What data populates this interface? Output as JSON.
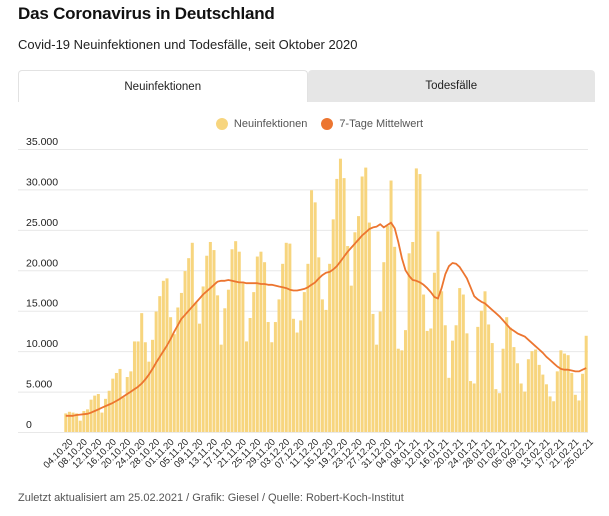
{
  "header": {
    "title": "Das Coronavirus in Deutschland",
    "subtitle": "Covid-19 Neuinfektionen und Todesfälle, seit Oktober 2020"
  },
  "tabs": [
    {
      "label": "Neuinfektionen",
      "active": true
    },
    {
      "label": "Todesfälle",
      "active": false
    }
  ],
  "legend": [
    {
      "label": "Neuinfektionen",
      "color": "#f7d57e"
    },
    {
      "label": "7-Tage Mittelwert",
      "color": "#ec7530"
    }
  ],
  "footer": "Zuletzt aktualisiert am 25.02.2021 / Grafik: Giesel / Quelle: Robert-Koch-Institut",
  "chart_data": {
    "type": "bar",
    "title": "Das Coronavirus in Deutschland",
    "subtitle": "Covid-19 Neuinfektionen und Todesfälle, seit Oktober 2020",
    "xlabel": "",
    "ylabel": "",
    "ylim": [
      0,
      35000
    ],
    "yticks": [
      0,
      5000,
      10000,
      15000,
      20000,
      25000,
      30000,
      35000
    ],
    "ytick_labels": [
      "0",
      "5.000",
      "10.000",
      "15.000",
      "20.000",
      "25.000",
      "30.000",
      "35.000"
    ],
    "grid": true,
    "legend_position": "top-center",
    "start_date": "04.10.20",
    "end_date": "25.02.21",
    "xtick_labels": [
      "04.10.20",
      "08.10.20",
      "12.10.20",
      "16.10.20",
      "20.10.20",
      "24.10.20",
      "28.10.20",
      "01.11.20",
      "05.11.20",
      "09.11.20",
      "13.11.20",
      "17.11.20",
      "21.11.20",
      "25.11.20",
      "29.11.20",
      "03.12.20",
      "07.12.20",
      "11.12.20",
      "15.12.20",
      "19.12.20",
      "23.12.20",
      "27.12.20",
      "31.12.20",
      "04.01.21",
      "08.01.21",
      "12.01.21",
      "16.01.21",
      "20.01.21",
      "24.01.21",
      "28.01.21",
      "01.02.21",
      "05.02.21",
      "09.02.21",
      "13.02.21",
      "17.02.21",
      "21.02.21",
      "25.02.21"
    ],
    "xtick_every_days": 4,
    "series": [
      {
        "name": "Neuinfektionen",
        "type": "bar",
        "color": "#f7d57e",
        "values": [
          2300,
          2500,
          2400,
          2300,
          1400,
          2600,
          2800,
          4000,
          4500,
          4700,
          2400,
          4100,
          5100,
          6600,
          7300,
          7800,
          4300,
          6800,
          7500,
          11200,
          11200,
          14700,
          11100,
          8700,
          11400,
          14900,
          16800,
          18700,
          19000,
          14200,
          12100,
          15400,
          17200,
          19900,
          21500,
          23400,
          16000,
          13400,
          18000,
          21800,
          23500,
          22500,
          16900,
          10800,
          15300,
          17600,
          22600,
          23600,
          22300,
          18600,
          11200,
          14100,
          17300,
          21700,
          22300,
          21000,
          13600,
          11100,
          13600,
          16400,
          20800,
          23400,
          23300,
          14000,
          12300,
          13800,
          17300,
          20800,
          29900,
          28400,
          21600,
          16400,
          15100,
          20800,
          26300,
          31300,
          33800,
          31400,
          23000,
          18100,
          24700,
          26700,
          31600,
          32700,
          25900,
          14600,
          10800,
          14900,
          21000,
          25500,
          31100,
          22900,
          10300,
          10100,
          12600,
          22100,
          23500,
          32600,
          31900,
          17000,
          12500,
          12800,
          19700,
          24800,
          17400,
          13200,
          6700,
          11300,
          13200,
          17800,
          17000,
          12200,
          6300,
          6000,
          13000,
          15000,
          17400,
          13300,
          11000,
          5300,
          4800,
          10300,
          14200,
          12900,
          10500,
          8500,
          6000,
          5000,
          9000,
          10000,
          10200,
          8300,
          7100,
          5900,
          4400,
          3800,
          7500,
          10100,
          9700,
          9500,
          7300,
          4600,
          3900,
          7200,
          11900
        ]
      },
      {
        "name": "7-Tage Mittelwert",
        "type": "line",
        "color": "#ec7530",
        "values": [
          2000,
          2000,
          2000,
          2100,
          2150,
          2200,
          2250,
          2400,
          2600,
          2800,
          3000,
          3200,
          3400,
          3600,
          3850,
          4100,
          4400,
          4700,
          5000,
          5300,
          5600,
          6000,
          6500,
          7100,
          7800,
          8600,
          9300,
          10000,
          10700,
          11500,
          12400,
          13200,
          14000,
          14500,
          15000,
          15500,
          16000,
          16500,
          17000,
          17400,
          17800,
          18200,
          18600,
          18700,
          18700,
          18800,
          18700,
          18600,
          18500,
          18500,
          18400,
          18400,
          18400,
          18400,
          18300,
          18300,
          18200,
          18200,
          18100,
          18000,
          17900,
          17800,
          17600,
          17500,
          17500,
          17600,
          17700,
          17900,
          18200,
          18500,
          19000,
          19400,
          19700,
          19800,
          20100,
          20500,
          21100,
          21700,
          22300,
          22800,
          23300,
          23800,
          24300,
          24700,
          25100,
          25300,
          25400,
          25700,
          25300,
          25600,
          25900,
          25200,
          23500,
          21500,
          20000,
          19300,
          18800,
          18700,
          18500,
          18200,
          17800,
          17300,
          16700,
          16500,
          17800,
          19500,
          20500,
          20900,
          20800,
          20400,
          19700,
          19000,
          17900,
          16800,
          16400,
          16100,
          15900,
          15500,
          15100,
          14700,
          14300,
          13800,
          13300,
          12800,
          12500,
          12200,
          12000,
          11800,
          11400,
          11000,
          10600,
          10200,
          9800,
          9300,
          8900,
          8500,
          8100,
          7800,
          7700,
          7700,
          7600,
          7500,
          7500,
          7700,
          7900
        ]
      }
    ]
  }
}
